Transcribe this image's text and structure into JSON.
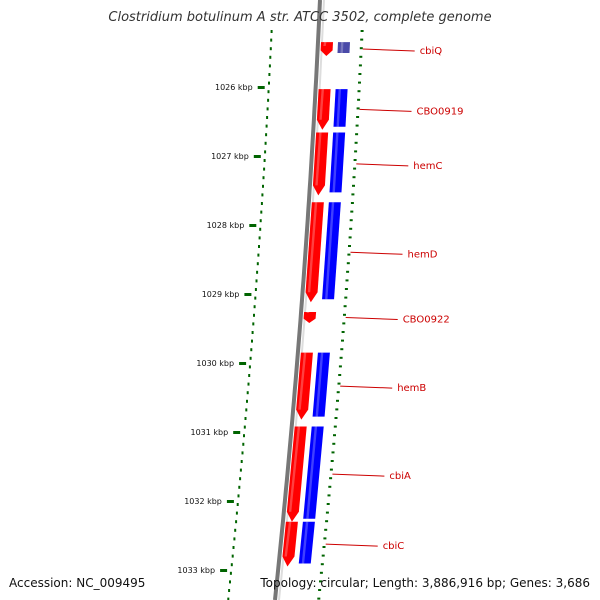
{
  "title": "Clostridium botulinum A str. ATCC 3502, complete genome",
  "footer": {
    "accession": "Accession: NC_009495",
    "topology": "Topology: circular; Length: 3,886,916 bp; Genes: 3,686"
  },
  "colors": {
    "forward_cds": "#ff0000",
    "reverse_cds": "#0000ff",
    "faded_cds": "#4a4aa8",
    "backbone": "#777777",
    "gc_ticks": "#006400",
    "kbp_ticks": "#006400",
    "label_text": "#cc0000",
    "label_line": "#cc0000"
  },
  "scale": {
    "ticks": [
      {
        "kbp": 1026,
        "label": "1026 kbp"
      },
      {
        "kbp": 1027,
        "label": "1027 kbp"
      },
      {
        "kbp": 1028,
        "label": "1028 kbp"
      },
      {
        "kbp": 1029,
        "label": "1029 kbp"
      },
      {
        "kbp": 1030,
        "label": "1030 kbp"
      },
      {
        "kbp": 1031,
        "label": "1031 kbp"
      },
      {
        "kbp": 1032,
        "label": "1032 kbp"
      },
      {
        "kbp": 1033,
        "label": "1033 kbp"
      }
    ]
  },
  "genes": [
    {
      "name": "cbiQ",
      "start_kbp": 1025.35,
      "end_kbp": 1025.55
    },
    {
      "name": "CBO0919",
      "start_kbp": 1026.03,
      "end_kbp": 1026.62
    },
    {
      "name": "hemC",
      "start_kbp": 1026.66,
      "end_kbp": 1027.57
    },
    {
      "name": "hemD",
      "start_kbp": 1027.67,
      "end_kbp": 1029.12
    },
    {
      "name": "CBO0922",
      "start_kbp": 1029.26,
      "end_kbp": 1029.42
    },
    {
      "name": "hemB",
      "start_kbp": 1029.85,
      "end_kbp": 1030.82
    },
    {
      "name": "cbiA",
      "start_kbp": 1030.92,
      "end_kbp": 1032.3
    },
    {
      "name": "cbiC",
      "start_kbp": 1032.3,
      "end_kbp": 1032.95
    }
  ]
}
